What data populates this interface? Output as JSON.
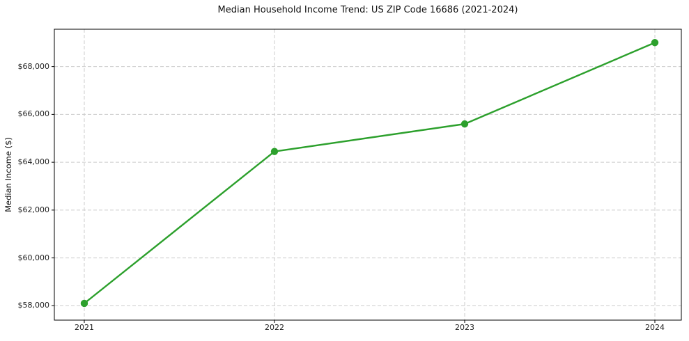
{
  "chart_data": {
    "type": "line",
    "title": "Median Household Income Trend: US ZIP Code 16686 (2021-2024)",
    "xlabel": "",
    "ylabel": "Median Income ($)",
    "categories": [
      "2021",
      "2022",
      "2023",
      "2024"
    ],
    "values": [
      58100,
      64450,
      65600,
      69000
    ],
    "ylim": [
      57400,
      69560
    ],
    "yticks": [
      {
        "value": 58000,
        "label": "$58,000"
      },
      {
        "value": 60000,
        "label": "$60,000"
      },
      {
        "value": 62000,
        "label": "$62,000"
      },
      {
        "value": 64000,
        "label": "$64,000"
      },
      {
        "value": 66000,
        "label": "$66,000"
      },
      {
        "value": 68000,
        "label": "$68,000"
      }
    ],
    "grid": "dashed, horizontal and vertical, at major ticks",
    "legend": "none",
    "marker": "filled circle",
    "colors": {
      "line": "#2ca02c",
      "marker": "#2ca02c",
      "grid": "#cccccc",
      "spine": "#000000",
      "text": "#1c1c1c",
      "background": "#ffffff"
    }
  }
}
